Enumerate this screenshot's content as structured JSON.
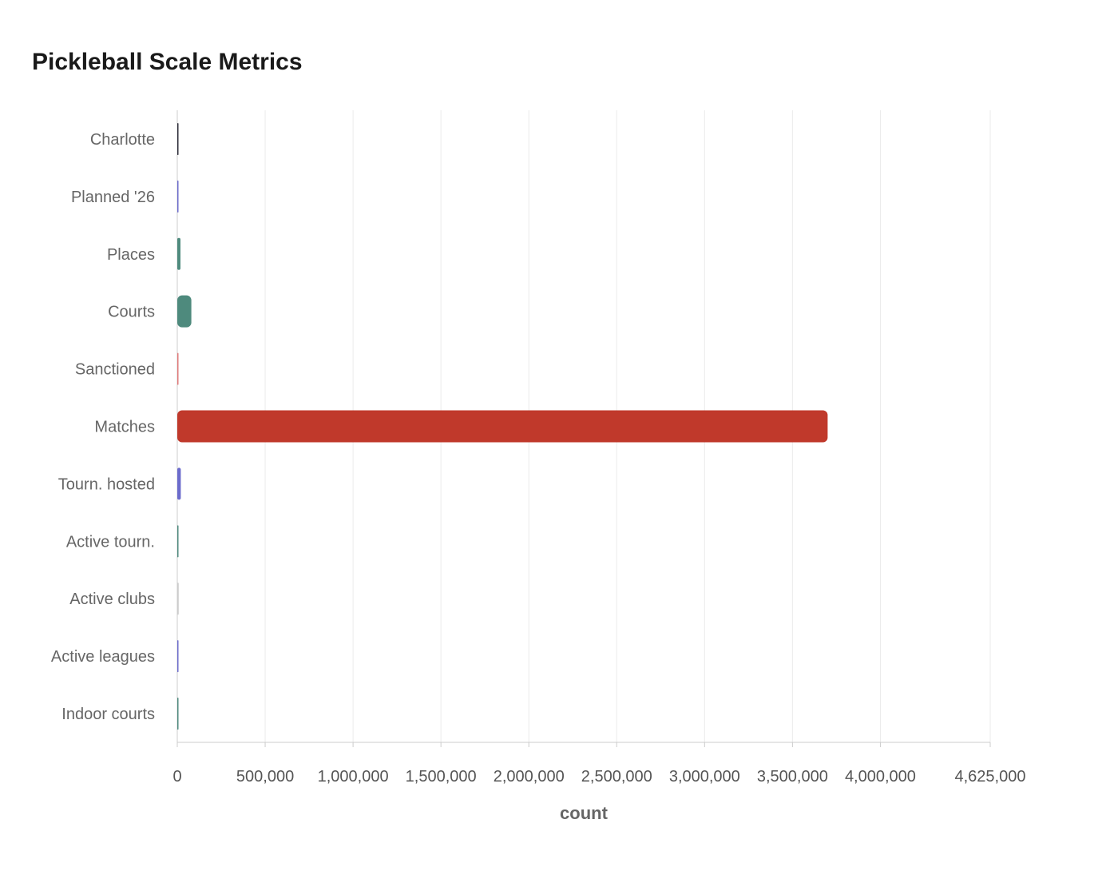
{
  "chart_data": {
    "type": "bar",
    "orientation": "horizontal",
    "title": "Pickleball Scale Metrics",
    "xlabel": "count",
    "ylabel": "",
    "xlim": [
      0,
      4625000
    ],
    "x_ticks": [
      0,
      500000,
      1000000,
      1500000,
      2000000,
      2500000,
      3000000,
      3500000,
      4000000,
      4625000
    ],
    "x_tick_labels": [
      "0",
      "500,000",
      "1,000,000",
      "1,500,000",
      "2,000,000",
      "2,500,000",
      "3,000,000",
      "3,500,000",
      "4,000,000",
      "4,625,000"
    ],
    "grid": "vertical",
    "legend": "none",
    "categories": [
      "Charlotte",
      "Planned '26",
      "Places",
      "Courts",
      "Sanctioned",
      "Matches",
      "Tourn. hosted",
      "Active tourn.",
      "Active clubs",
      "Active leagues",
      "Indoor courts"
    ],
    "values": [
      2000,
      3000,
      18000,
      80000,
      1500,
      3700000,
      20000,
      3500,
      8000,
      3000,
      3000
    ],
    "colors": [
      "#2d2d3a",
      "#6b6bcc",
      "#4e8a7d",
      "#4e8a7d",
      "#e07a7a",
      "#c0392b",
      "#6b6bcc",
      "#4e8a7d",
      "#cccccc",
      "#6b6bcc",
      "#4e8a7d"
    ]
  }
}
